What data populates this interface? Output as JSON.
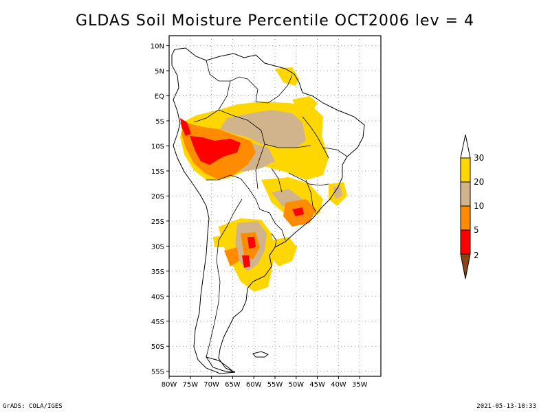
{
  "title": "GLDAS Soil Moisture Percentile OCT2006 lev = 4",
  "footer": {
    "left": "GrADS: COLA/IGES",
    "right": "2021-05-13-18:33"
  },
  "map": {
    "lon_range": [
      -80,
      -30
    ],
    "lat_range": [
      -56,
      12
    ],
    "lat_ticks": [
      {
        "lat": 10,
        "label": "10N"
      },
      {
        "lat": 5,
        "label": "5N"
      },
      {
        "lat": 0,
        "label": "EQ"
      },
      {
        "lat": -5,
        "label": "5S"
      },
      {
        "lat": -10,
        "label": "10S"
      },
      {
        "lat": -15,
        "label": "15S"
      },
      {
        "lat": -20,
        "label": "20S"
      },
      {
        "lat": -25,
        "label": "25S"
      },
      {
        "lat": -30,
        "label": "30S"
      },
      {
        "lat": -35,
        "label": "35S"
      },
      {
        "lat": -40,
        "label": "40S"
      },
      {
        "lat": -45,
        "label": "45S"
      },
      {
        "lat": -50,
        "label": "50S"
      },
      {
        "lat": -55,
        "label": "55S"
      }
    ],
    "lon_ticks": [
      {
        "lon": -80,
        "label": "80W"
      },
      {
        "lon": -75,
        "label": "75W"
      },
      {
        "lon": -70,
        "label": "70W"
      },
      {
        "lon": -65,
        "label": "65W"
      },
      {
        "lon": -60,
        "label": "60W"
      },
      {
        "lon": -55,
        "label": "55W"
      },
      {
        "lon": -50,
        "label": "50W"
      },
      {
        "lon": -45,
        "label": "45W"
      },
      {
        "lon": -40,
        "label": "40W"
      },
      {
        "lon": -35,
        "label": "35W"
      }
    ],
    "gridlines": true
  },
  "colorbar": {
    "levels": [
      "2",
      "5",
      "10",
      "20",
      "30"
    ],
    "colors": [
      "#8b4513",
      "#ff0000",
      "#ff8c00",
      "#d2b48c",
      "#ffd700",
      "#ffffff"
    ]
  }
}
